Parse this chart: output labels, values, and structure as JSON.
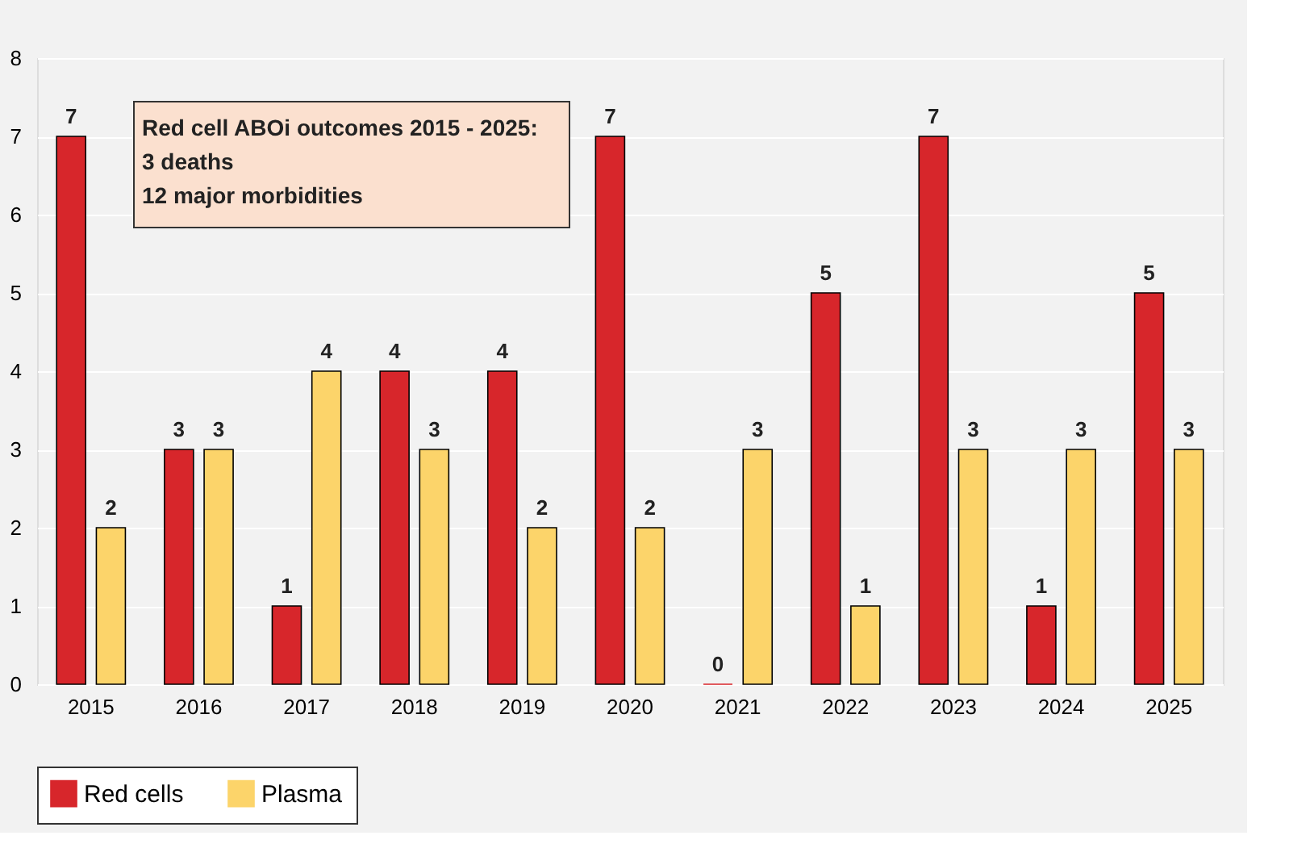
{
  "chart_data": {
    "type": "bar",
    "categories": [
      "2015",
      "2016",
      "2017",
      "2018",
      "2019",
      "2020",
      "2021",
      "2022",
      "2023",
      "2024",
      "2025"
    ],
    "series": [
      {
        "name": "Red cells",
        "color": "#d7262b",
        "values": [
          7,
          3,
          1,
          4,
          4,
          7,
          0,
          5,
          7,
          1,
          5
        ]
      },
      {
        "name": "Plasma",
        "color": "#fcd46a",
        "values": [
          2,
          3,
          4,
          3,
          2,
          2,
          3,
          1,
          3,
          3,
          3
        ]
      }
    ],
    "ylim": [
      0,
      8
    ],
    "yticks": [
      0,
      1,
      2,
      3,
      4,
      5,
      6,
      7,
      8
    ],
    "grid": "y",
    "legend": "bottom",
    "data_labels": true,
    "annotations": [
      "Red cell ABOi outcomes 2015 - 2025:\n 3 deaths\n12 major morbidities"
    ]
  }
}
